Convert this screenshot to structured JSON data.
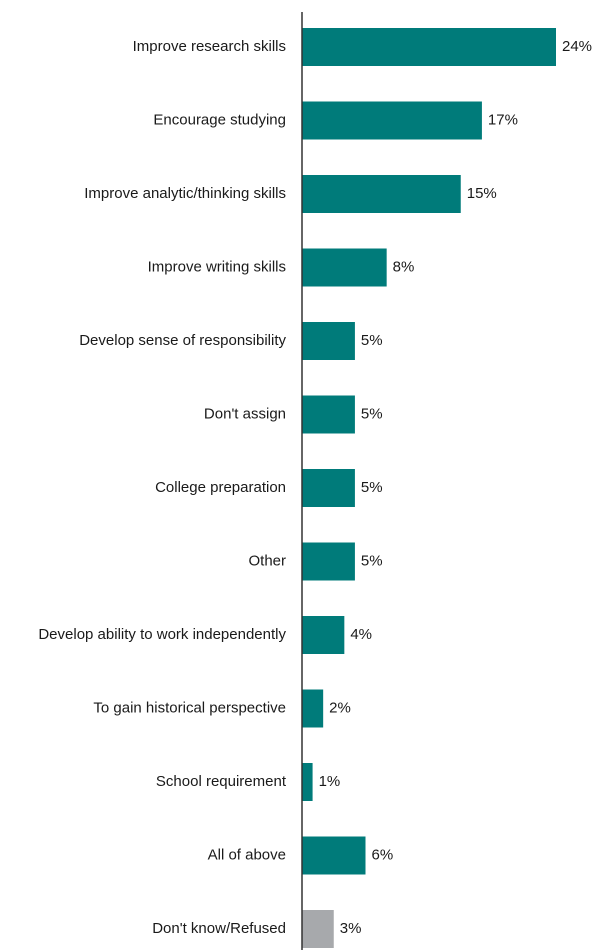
{
  "chart_data": {
    "type": "bar",
    "orientation": "horizontal",
    "title": "",
    "xlabel": "",
    "ylabel": "",
    "xlim": [
      0,
      24
    ],
    "grid": false,
    "legend": "none",
    "value_suffix": "%",
    "categories": [
      "Improve research skills",
      "Encourage studying",
      "Improve analytic/thinking skills",
      "Improve writing skills",
      "Develop sense of responsibility",
      "Don't assign",
      "College preparation",
      "Other",
      "Develop ability to work independently",
      "To gain historical perspective",
      "School requirement",
      "All of above",
      "Don't know/Refused"
    ],
    "values": [
      24,
      17,
      15,
      8,
      5,
      5,
      5,
      5,
      4,
      2,
      1,
      6,
      3
    ],
    "value_labels": [
      "24%",
      "17%",
      "15%",
      "8%",
      "5%",
      "5%",
      "5%",
      "5%",
      "4%",
      "2%",
      "1%",
      "6%",
      "3%"
    ],
    "bar_colors": [
      "#007b7a",
      "#007b7a",
      "#007b7a",
      "#007b7a",
      "#007b7a",
      "#007b7a",
      "#007b7a",
      "#007b7a",
      "#007b7a",
      "#007b7a",
      "#007b7a",
      "#007b7a",
      "#a7a9ac"
    ],
    "axis_color": "#333333"
  }
}
